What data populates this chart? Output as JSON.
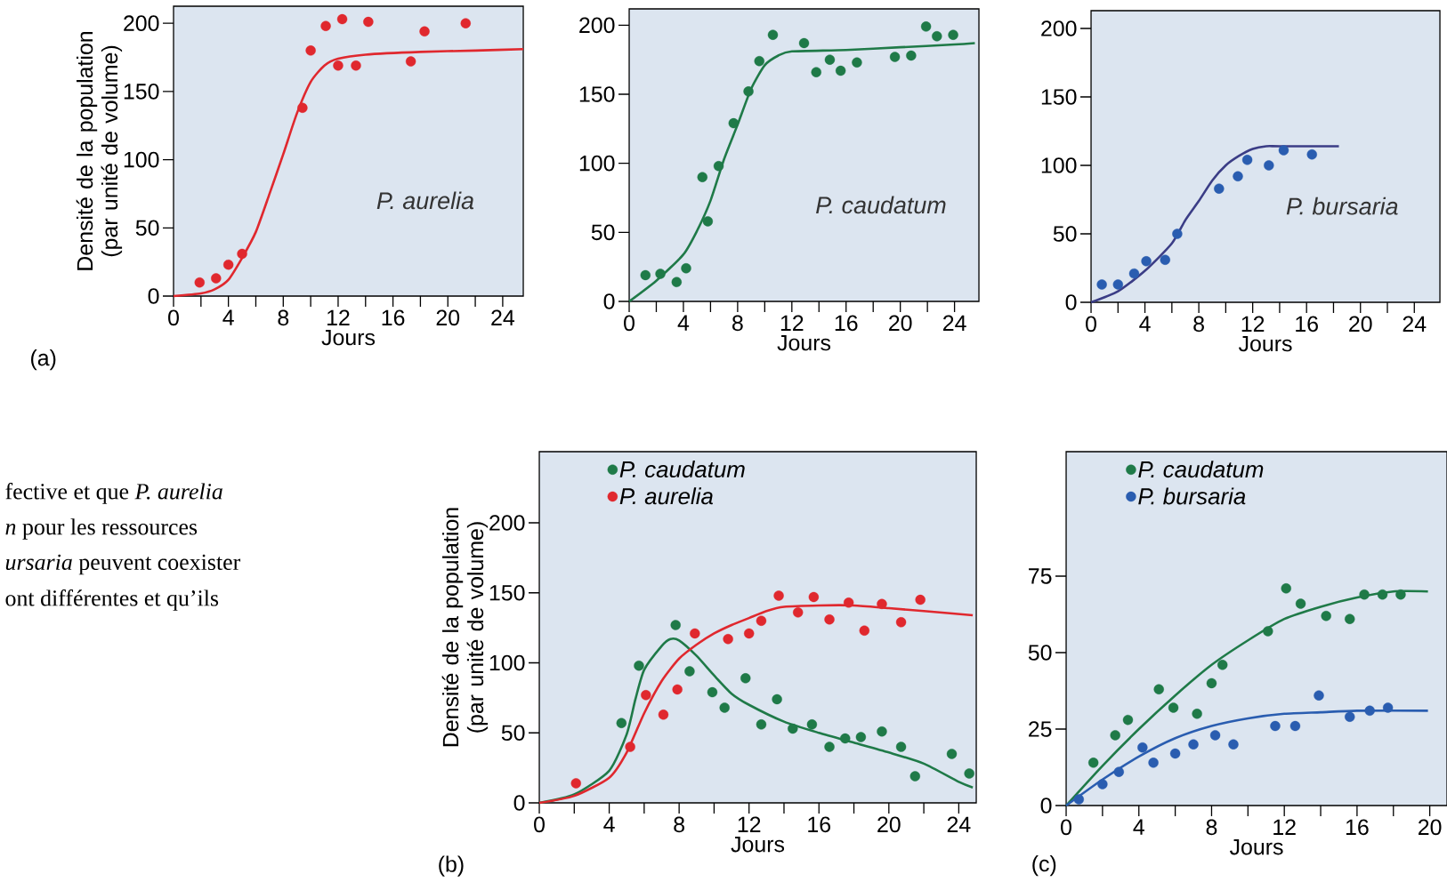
{
  "chart_data": [
    {
      "type": "scatter",
      "xlabel": "Jours",
      "ylabel": "Densité de la population (par unité de volume)",
      "annotations": [
        "(a)"
      ],
      "xlim": [
        0,
        25.5
      ],
      "ylim": [
        0,
        212.5
      ],
      "xticks": [
        0,
        {
          "value": 2,
          "label": null
        },
        4,
        {
          "value": 6,
          "label": null
        },
        8,
        {
          "value": 10,
          "label": null
        },
        12,
        {
          "value": 14,
          "label": null
        },
        16,
        {
          "value": 18,
          "label": null
        },
        20,
        {
          "value": 22,
          "label": null
        },
        24
      ],
      "yticks": [
        0,
        50,
        100,
        150,
        200
      ],
      "series": [
        {
          "name": "P. aurelia",
          "type": "scatter",
          "marker": "circle",
          "color": "#e0282e",
          "x": [
            1.9,
            3.1,
            4.0,
            5.0,
            9.4,
            10.0,
            11.1,
            12.0,
            12.3,
            13.3,
            14.2,
            17.3,
            18.3,
            21.3
          ],
          "values": [
            10,
            13,
            23,
            31,
            138,
            180,
            198,
            169,
            203,
            169,
            201,
            172,
            194,
            200
          ]
        },
        {
          "type": "line",
          "color": "#e0282e",
          "x": [
            0,
            2,
            3,
            4,
            5,
            6,
            7,
            8,
            9,
            10,
            11,
            12,
            14,
            18,
            22,
            25.5
          ],
          "values": [
            0,
            2,
            5,
            12,
            28,
            47,
            75,
            104,
            134,
            157,
            169,
            174,
            177,
            179,
            180,
            181
          ]
        }
      ]
    },
    {
      "type": "scatter",
      "xlabel": "Jours",
      "xlim": [
        0,
        25.8
      ],
      "ylim": [
        0,
        211.8
      ],
      "xticks": [
        0,
        {
          "value": 2,
          "label": null
        },
        4,
        {
          "value": 6,
          "label": null
        },
        8,
        {
          "value": 10,
          "label": null
        },
        12,
        {
          "value": 14,
          "label": null
        },
        16,
        {
          "value": 18,
          "label": null
        },
        20,
        {
          "value": 22,
          "label": null
        },
        24
      ],
      "yticks": [
        0,
        50,
        100,
        150,
        200
      ],
      "series": [
        {
          "name": "P. caudatum",
          "type": "scatter",
          "marker": "circle",
          "color": "#1f7a48",
          "x": [
            1.2,
            2.3,
            3.5,
            4.2,
            5.4,
            5.8,
            6.6,
            7.7,
            8.8,
            9.6,
            10.6,
            12.9,
            13.8,
            14.8,
            15.6,
            16.8,
            19.6,
            20.8,
            21.9,
            22.7,
            23.9
          ],
          "values": [
            19,
            20,
            14,
            24,
            90,
            58,
            98,
            129,
            152,
            174,
            193,
            187,
            166,
            175,
            167,
            173,
            177,
            178,
            199,
            192,
            193
          ]
        },
        {
          "type": "line",
          "color": "#1f7a48",
          "x": [
            0,
            2,
            4,
            5,
            6,
            7,
            8,
            9,
            10,
            11,
            12,
            16,
            20,
            24,
            25.5
          ],
          "values": [
            0,
            15,
            34,
            51,
            73,
            103,
            128,
            154,
            171,
            178,
            181,
            182,
            184,
            186,
            187
          ]
        }
      ]
    },
    {
      "type": "scatter",
      "xlabel": "Jours",
      "xlim": [
        0,
        25.9
      ],
      "ylim": [
        0,
        213
      ],
      "xticks": [
        0,
        {
          "value": 2,
          "label": null
        },
        4,
        {
          "value": 6,
          "label": null
        },
        8,
        {
          "value": 10,
          "label": null
        },
        12,
        {
          "value": 14,
          "label": null
        },
        16,
        {
          "value": 18,
          "label": null
        },
        20,
        {
          "value": 22,
          "label": null
        },
        24
      ],
      "yticks": [
        0,
        50,
        100,
        150,
        200
      ],
      "series": [
        {
          "name": "P. bursaria",
          "type": "scatter",
          "marker": "circle",
          "color": "#2a5db0",
          "x": [
            0.8,
            2.0,
            3.2,
            4.1,
            5.5,
            6.4,
            9.5,
            10.9,
            11.6,
            13.2,
            14.3,
            16.4
          ],
          "values": [
            13,
            13,
            21,
            30,
            31,
            50,
            83,
            92,
            104,
            100,
            111,
            108
          ]
        },
        {
          "type": "line",
          "color": "#3b3d86",
          "x": [
            0,
            2,
            4,
            6,
            7,
            8,
            9,
            10,
            11,
            12,
            13,
            14,
            18.4
          ],
          "values": [
            0,
            8,
            23,
            43,
            60,
            74,
            89,
            100,
            107,
            112,
            114,
            114,
            114
          ]
        }
      ]
    },
    {
      "type": "other",
      "annotations": [
        "fective et que *P. aurelia*",
        "*n* pour les ressources",
        "*ursaria* peuvent coexister",
        "ont différentes et qu’ils"
      ]
    },
    {
      "type": "scatter",
      "xlabel": "Jours",
      "ylabel": "Densité de la population (par unité de volume)",
      "annotations": [
        "(b)"
      ],
      "legend": "top left",
      "xlim": [
        0,
        25
      ],
      "ylim": [
        0,
        250.8
      ],
      "xticks": [
        0,
        {
          "value": 2,
          "label": null
        },
        4,
        {
          "value": 6,
          "label": null
        },
        8,
        {
          "value": 10,
          "label": null
        },
        12,
        {
          "value": 14,
          "label": null
        },
        16,
        {
          "value": 18,
          "label": null
        },
        20,
        {
          "value": 22,
          "label": null
        },
        24
      ],
      "yticks": [
        0,
        50,
        100,
        150,
        200
      ],
      "series": [
        {
          "name": "P. caudatum",
          "type": "scatter",
          "marker": "circle",
          "color": "#1f7a48",
          "x": [
            4.7,
            5.7,
            7.8,
            8.6,
            9.9,
            10.6,
            11.8,
            12.7,
            13.6,
            14.5,
            15.6,
            16.6,
            17.5,
            18.4,
            19.6,
            20.7,
            21.5,
            23.6,
            24.6
          ],
          "values": [
            57,
            98,
            127,
            94,
            79,
            68,
            89,
            56,
            74,
            53,
            56,
            40,
            46,
            47,
            51,
            40,
            19,
            35,
            21
          ]
        },
        {
          "name": "P. aurelia",
          "type": "scatter",
          "marker": "circle",
          "color": "#e0282e",
          "x": [
            2.1,
            5.2,
            6.1,
            7.1,
            7.9,
            8.9,
            10.8,
            12.0,
            12.7,
            13.7,
            14.8,
            15.7,
            16.6,
            17.7,
            18.6,
            19.6,
            20.7,
            21.8
          ],
          "values": [
            14,
            40,
            77,
            63,
            81,
            121,
            117,
            121,
            130,
            148,
            136,
            147,
            131,
            143,
            123,
            142,
            129,
            145
          ]
        },
        {
          "type": "line",
          "color": "#1f7a48",
          "x": [
            0,
            2,
            4,
            5,
            5.5,
            6,
            7,
            7.5,
            8,
            9,
            10,
            11,
            12,
            14,
            16,
            18,
            20,
            22,
            24,
            24.8
          ],
          "values": [
            0,
            6,
            23,
            49,
            74,
            95,
            112,
            117,
            116,
            105,
            91,
            78,
            70,
            58,
            50,
            43,
            36,
            28,
            15,
            11
          ]
        },
        {
          "type": "line",
          "color": "#e0282e",
          "x": [
            0,
            2,
            4,
            5,
            6,
            7,
            8,
            9,
            10,
            11,
            12,
            13,
            14,
            16,
            18,
            20,
            22,
            24.8
          ],
          "values": [
            0,
            5,
            18,
            36,
            64,
            87,
            103,
            113,
            121,
            127,
            132,
            137,
            140,
            141,
            141,
            139,
            137,
            134
          ]
        }
      ]
    },
    {
      "type": "scatter",
      "xlabel": "Jours",
      "annotations": [
        "(c)"
      ],
      "legend": "top left",
      "xlim": [
        0,
        20.95
      ],
      "ylim": [
        0,
        115.7
      ],
      "xticks": [
        0,
        {
          "value": 2,
          "label": null
        },
        4,
        {
          "value": 6,
          "label": null
        },
        8,
        {
          "value": 10,
          "label": null
        },
        12,
        {
          "value": 14,
          "label": null
        },
        16,
        {
          "value": 18,
          "label": null
        },
        20
      ],
      "yticks": [
        0,
        25,
        50,
        75
      ],
      "series": [
        {
          "name": "P. caudatum",
          "type": "scatter",
          "marker": "circle",
          "color": "#1f7a48",
          "x": [
            1.5,
            2.7,
            3.4,
            5.1,
            5.9,
            7.2,
            8.0,
            8.6,
            11.1,
            12.1,
            12.9,
            14.3,
            15.6,
            16.4,
            17.4,
            18.4
          ],
          "values": [
            14,
            23,
            28,
            38,
            32,
            30,
            40,
            46,
            57,
            71,
            66,
            62,
            61,
            69,
            69,
            69
          ]
        },
        {
          "name": "P. bursaria",
          "type": "scatter",
          "marker": "circle",
          "color": "#2a5db0",
          "x": [
            0.7,
            2.0,
            2.9,
            4.2,
            4.8,
            6.0,
            7.0,
            8.2,
            9.2,
            11.5,
            12.6,
            13.9,
            15.6,
            16.7,
            17.7
          ],
          "values": [
            2,
            7,
            11,
            19,
            14,
            17,
            20,
            23,
            20,
            26,
            26,
            36,
            29,
            31,
            32
          ]
        },
        {
          "type": "line",
          "color": "#1f7a48",
          "x": [
            0,
            2,
            4,
            6,
            8,
            10,
            12,
            14,
            16,
            18,
            19.9
          ],
          "values": [
            0,
            13,
            25,
            36,
            46,
            54,
            61,
            65,
            68,
            70,
            70
          ]
        },
        {
          "type": "line",
          "color": "#2a5db0",
          "x": [
            0,
            2,
            4,
            6,
            8,
            10,
            12,
            14,
            16,
            19.9
          ],
          "values": [
            0,
            8.5,
            16,
            22,
            26,
            28.5,
            30,
            30.5,
            31,
            31
          ]
        }
      ]
    }
  ]
}
